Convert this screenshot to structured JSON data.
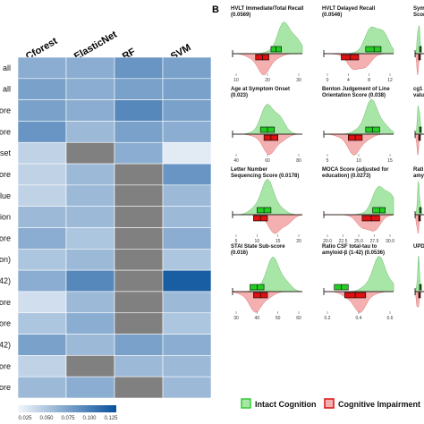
{
  "chart_data": [
    {
      "type": "heatmap",
      "title": "",
      "columns": [
        "Cforest",
        "ElasticNet",
        "RF",
        "SVM"
      ],
      "row_labels": [
        "all",
        "all",
        "ore",
        "ore",
        "set",
        "ore",
        "lue",
        "ion",
        "ore",
        "ton)",
        "-42)",
        "ore",
        "ore",
        "42)",
        "ore",
        "ore"
      ],
      "values": [
        [
          0.06,
          0.06,
          0.08,
          0.07
        ],
        [
          0.07,
          0.06,
          0.07,
          0.07
        ],
        [
          0.07,
          0.06,
          0.09,
          0.07
        ],
        [
          0.08,
          0.05,
          0.07,
          0.06
        ],
        [
          0.03,
          null,
          0.06,
          0.01
        ],
        [
          0.03,
          0.05,
          null,
          0.08
        ],
        [
          0.03,
          0.05,
          null,
          0.05
        ],
        [
          0.05,
          0.05,
          null,
          0.05
        ],
        [
          0.06,
          0.04,
          null,
          0.06
        ],
        [
          0.04,
          0.05,
          null,
          0.04
        ],
        [
          0.06,
          0.09,
          null,
          0.125
        ],
        [
          0.02,
          0.05,
          null,
          0.05
        ],
        [
          0.04,
          0.06,
          null,
          0.04
        ],
        [
          0.07,
          0.05,
          0.07,
          0.06
        ],
        [
          0.03,
          null,
          0.05,
          0.05
        ],
        [
          0.05,
          0.06,
          null,
          0.05
        ]
      ],
      "colorbar": {
        "ticks": [
          "0.025",
          "0.050",
          "0.075",
          "0.100",
          "0.125"
        ],
        "low_color": "#f3f7fb",
        "high_color": "#08519c"
      },
      "missing_color": "#808080"
    },
    {
      "type": "area",
      "panel_letter": "B",
      "panels": [
        {
          "title": "HVLT Immediate/Total Recall\n(0.0569)",
          "ticks": [
            "10",
            "20",
            "30"
          ],
          "intact_peak": 0.78,
          "impair_peak": 0.45,
          "green_box": [
            0.55,
            0.62,
            0.7
          ],
          "red_box": [
            0.33,
            0.43,
            0.52
          ]
        },
        {
          "title": "HVLT Delayed Recall\n(0.0546)",
          "ticks": [
            "0",
            "4",
            "8",
            "12"
          ],
          "intact_peak": 0.75,
          "impair_peak": 0.5,
          "green_box": [
            0.6,
            0.72,
            0.82
          ],
          "red_box": [
            0.25,
            0.38,
            0.5
          ]
        },
        {
          "title": "Sym\nScor",
          "ticks": [],
          "intact_peak": 0.4,
          "impair_peak": 0.3,
          "green_box": [
            0.5,
            0.6,
            0.7
          ],
          "red_box": [
            0.4,
            0.5,
            0.6
          ]
        },
        {
          "title": "Age at Symptom Onset\n(0.023)",
          "ticks": [
            "40",
            "60",
            "80"
          ],
          "intact_peak": 0.55,
          "impair_peak": 0.55,
          "green_box": [
            0.4,
            0.5,
            0.6
          ],
          "red_box": [
            0.45,
            0.55,
            0.65
          ]
        },
        {
          "title": "Benton Judgement of Line\nOrientation Score (0.038)",
          "ticks": [
            "5",
            "10",
            "15"
          ],
          "intact_peak": 0.7,
          "impair_peak": 0.45,
          "green_box": [
            0.6,
            0.7,
            0.8
          ],
          "red_box": [
            0.35,
            0.45,
            0.55
          ]
        },
        {
          "title": "cg1\nvalu",
          "ticks": [],
          "intact_peak": 0.4,
          "impair_peak": 0.3,
          "green_box": [
            0.5,
            0.6,
            0.7
          ],
          "red_box": [
            0.4,
            0.5,
            0.6
          ]
        },
        {
          "title": "Letter Number\nSequencing Score (0.0178)",
          "ticks": [
            "5",
            "10",
            "15",
            "20"
          ],
          "intact_peak": 0.5,
          "impair_peak": 0.65,
          "green_box": [
            0.35,
            0.45,
            0.55
          ],
          "red_box": [
            0.3,
            0.4,
            0.5
          ]
        },
        {
          "title": "MOCA Score (adjusted for\neducation) (0.0273)",
          "ticks": [
            "20.0",
            "22.5",
            "25.0",
            "27.5",
            "30.0"
          ],
          "intact_peak": 0.85,
          "impair_peak": 0.65,
          "green_box": [
            0.7,
            0.8,
            0.88
          ],
          "red_box": [
            0.55,
            0.68,
            0.8
          ]
        },
        {
          "title": "Rati\namyl",
          "ticks": [],
          "intact_peak": 0.4,
          "impair_peak": 0.3,
          "green_box": [
            0.5,
            0.6,
            0.7
          ],
          "red_box": [
            0.4,
            0.5,
            0.6
          ]
        },
        {
          "title": "STAI State Sub-score\n(0.016)",
          "ticks": [
            "30",
            "40",
            "50",
            "60"
          ],
          "intact_peak": 0.6,
          "impair_peak": 0.35,
          "green_box": [
            0.25,
            0.35,
            0.45
          ],
          "red_box": [
            0.3,
            0.4,
            0.5
          ]
        },
        {
          "title": "Ratio CSF total-tau to\namyloid-β (1-42) (0.0536)",
          "ticks": [
            "0.2",
            "0.4",
            "0.6"
          ],
          "intact_peak": 0.8,
          "impair_peak": 0.5,
          "green_box": [
            0.15,
            0.25,
            0.35
          ],
          "red_box": [
            0.3,
            0.45,
            0.6
          ]
        },
        {
          "title": "UPD",
          "ticks": [],
          "intact_peak": 0.4,
          "impair_peak": 0.3,
          "green_box": [
            0.5,
            0.6,
            0.7
          ],
          "red_box": [
            0.4,
            0.5,
            0.6
          ]
        }
      ],
      "legend": [
        {
          "label": "Intact Cognition",
          "color": "#33cc33",
          "fill": "#a8e6a8"
        },
        {
          "label": "Cognitive Impairment",
          "color": "#dd1111",
          "fill": "#f4b0b0"
        }
      ]
    }
  ]
}
